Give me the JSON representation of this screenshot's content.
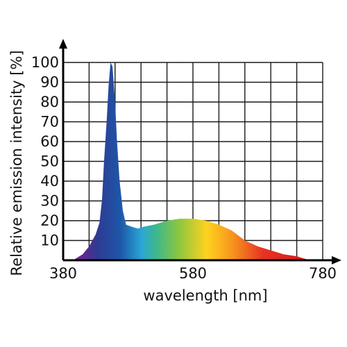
{
  "chart_data": {
    "type": "area",
    "xlabel": "wavelength [nm]",
    "ylabel": "Relative emission intensity [%]",
    "x_tick_labels": [
      "380",
      "580",
      "780"
    ],
    "x_ticks": [
      380,
      580,
      780
    ],
    "y_ticks": [
      10,
      20,
      30,
      40,
      50,
      60,
      70,
      80,
      90,
      100
    ],
    "xlim": [
      380,
      780
    ],
    "ylim": [
      0,
      100
    ],
    "grid": true,
    "series": [
      {
        "x": [
          395,
          410,
          420,
          430,
          436,
          440,
          443,
          447,
          450,
          453,
          456,
          460,
          463,
          467,
          472,
          477,
          485,
          495,
          505,
          520,
          540,
          560,
          580,
          600,
          620,
          640,
          660,
          680,
          700,
          720,
          740,
          750,
          760
        ],
        "values": [
          0,
          3,
          7,
          13,
          19,
          31,
          50,
          70,
          88,
          100,
          98,
          80,
          60,
          40,
          25,
          18,
          17,
          16,
          17,
          18,
          20,
          21,
          21,
          20,
          18,
          15,
          10,
          7,
          5,
          3,
          2,
          1,
          0
        ]
      }
    ],
    "gradient_colors": [
      "#7a1e8f",
      "#2f3a93",
      "#1d57a8",
      "#2aa6d6",
      "#3bb78f",
      "#8dc63f",
      "#ffd21f",
      "#f7941d",
      "#e63323",
      "#d7191c"
    ]
  }
}
